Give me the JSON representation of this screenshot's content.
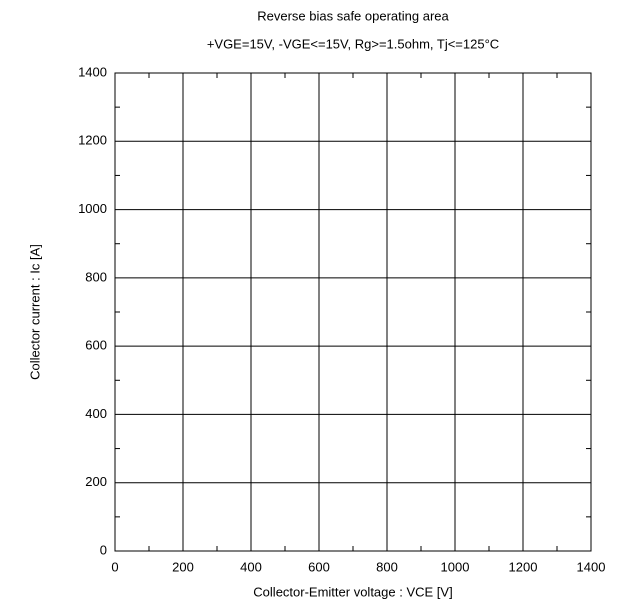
{
  "chart_data": {
    "type": "line",
    "title": "Reverse bias safe operating area",
    "subtitle": "+VGE=15V, -VGE<=15V, Rg>=1.5ohm, Tj<=125°C",
    "x_label": "Collector-Emitter voltage : VCE [V]",
    "y_label": "Collector current : Ic [A]",
    "xlim": [
      0,
      1400
    ],
    "xticks": [
      0,
      200,
      400,
      600,
      800,
      1000,
      1200,
      1400
    ],
    "ylim": [
      0,
      1400
    ],
    "yticks": [
      0,
      200,
      400,
      600,
      800,
      1000,
      1200,
      1400
    ],
    "grid": true,
    "series": []
  }
}
